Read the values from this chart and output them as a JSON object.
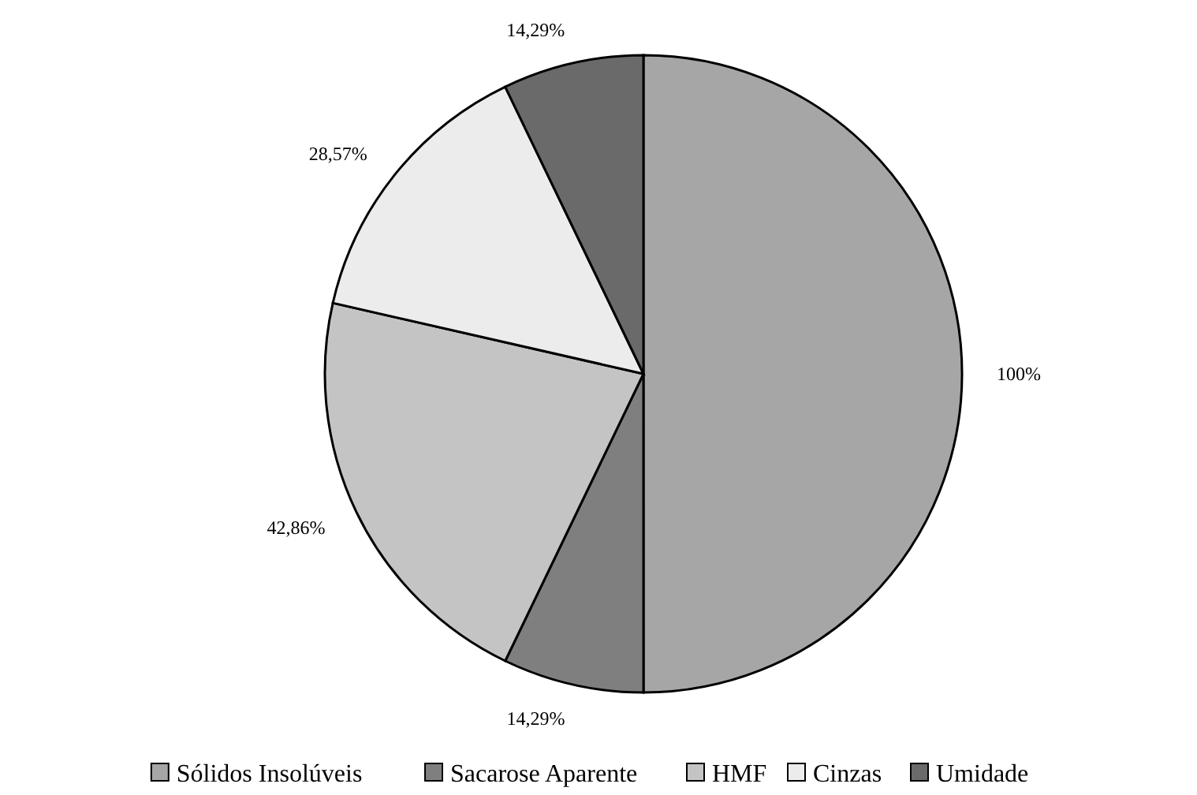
{
  "chart_data": {
    "type": "pie",
    "categories": [
      "Sólidos Insolúveis",
      "Sacarose Aparente",
      "HMF",
      "Cinzas",
      "Umidade"
    ],
    "values": [
      100,
      14.29,
      42.86,
      28.57,
      14.29
    ],
    "value_labels": [
      "100%",
      "14,29%",
      "42,86%",
      "28,57%",
      "14,29%"
    ],
    "colors": [
      "#a6a6a6",
      "#7f7f7f",
      "#c4c4c4",
      "#ececec",
      "#6a6a6a"
    ],
    "legend": "bottom"
  }
}
